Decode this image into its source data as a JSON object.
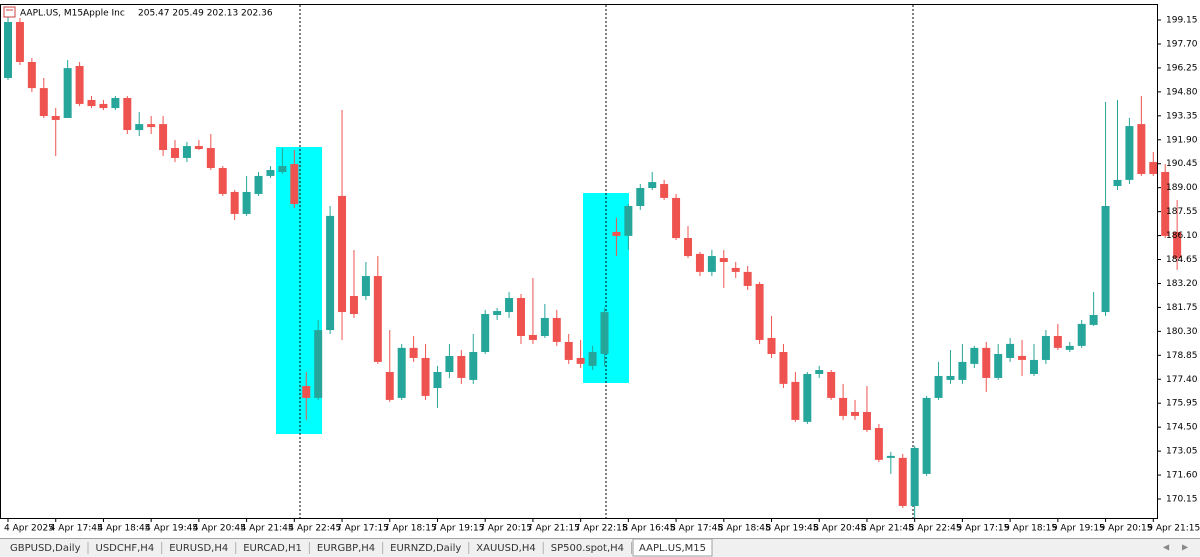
{
  "header": {
    "symbol": "AAPL.US, M15:",
    "name": "Apple Inc",
    "ohlc": "205.47 205.49 202.13 202.36"
  },
  "tabs": [
    "GBPUSD,Daily",
    "USDCHF,H4",
    "EURUSD,H4",
    "EURCAD,H1",
    "EURGBP,H4",
    "EURNZD,Daily",
    "XAUUSD,H4",
    "SP500.spot,H4",
    "AAPL.US,M15"
  ],
  "chart_data": {
    "type": "candlestick",
    "categories": [
      "4 Apr 2025",
      null,
      null,
      null,
      "4 Apr 17:45",
      null,
      null,
      null,
      "4 Apr 18:45",
      null,
      null,
      null,
      "4 Apr 19:45",
      null,
      null,
      null,
      "4 Apr 20:45",
      null,
      null,
      null,
      "4 Apr 21:45",
      null,
      null,
      null,
      "4 Apr 22:45",
      null,
      null,
      null,
      "7 Apr 17:15",
      null,
      null,
      null,
      "7 Apr 18:15",
      null,
      null,
      null,
      "7 Apr 19:15",
      null,
      null,
      null,
      "7 Apr 20:15",
      null,
      null,
      null,
      "7 Apr 21:15",
      null,
      null,
      null,
      "7 Apr 22:15",
      null,
      null,
      null,
      "8 Apr 16:45",
      null,
      null,
      null,
      "8 Apr 17:45",
      null,
      null,
      null,
      "8 Apr 18:45",
      null,
      null,
      null,
      "8 Apr 19:45",
      null,
      null,
      null,
      "8 Apr 20:45",
      null,
      null,
      null,
      "8 Apr 21:45",
      null,
      null,
      null,
      "8 Apr 22:45",
      null,
      null,
      null,
      "9 Apr 17:15",
      null,
      null,
      null,
      "9 Apr 18:15",
      null,
      null,
      null,
      "9 Apr 19:15",
      null,
      null,
      null,
      "9 Apr 20:15",
      null,
      null,
      null,
      "9 Apr 21:15",
      null,
      null
    ],
    "open": [
      195.64,
      199.03,
      196.61,
      195.03,
      193.34,
      193.22,
      196.37,
      194.31,
      194.07,
      193.82,
      194.43,
      192.49,
      192.85,
      192.85,
      191.4,
      190.8,
      191.52,
      191.4,
      190.19,
      188.74,
      187.41,
      188.62,
      189.71,
      189.95,
      190.43,
      176.99,
      176.27,
      180.38,
      188.5,
      182.44,
      182.44,
      183.65,
      177.84,
      176.27,
      179.3,
      178.69,
      176.87,
      177.84,
      178.81,
      177.36,
      179.05,
      181.29,
      181.47,
      182.32,
      180.08,
      180.02,
      181.11,
      179.66,
      178.69,
      178.21,
      178.93,
      186.32,
      186.08,
      187.89,
      188.98,
      189.22,
      188.38,
      185.95,
      184.99,
      183.9,
      184.74,
      184.14,
      183.9,
      183.17,
      179.9,
      179.05,
      177.24,
      174.82,
      177.72,
      177.84,
      176.27,
      175.42,
      175.42,
      174.45,
      172.64,
      172.64,
      169.73,
      171.67,
      176.27,
      177.36,
      177.36,
      178.33,
      179.3,
      177.48,
      178.69,
      178.81,
      177.72,
      178.57,
      180.02,
      179.18,
      179.42,
      180.69,
      181.47,
      189.1,
      189.47,
      192.85,
      190.55,
      189.95,
      186.32
    ],
    "high": [
      199.63,
      199.27,
      196.85,
      195.64,
      193.82,
      196.73,
      196.61,
      194.55,
      194.31,
      194.55,
      194.55,
      193.58,
      193.34,
      193.34,
      191.89,
      191.77,
      191.89,
      192.25,
      190.31,
      188.86,
      189.71,
      189.95,
      190.31,
      191.4,
      191.28,
      177.84,
      180.99,
      187.89,
      193.7,
      185.23,
      184.5,
      184.86,
      180.38,
      179.54,
      180.02,
      179.54,
      178.21,
      179.54,
      179.17,
      180.14,
      181.6,
      181.72,
      182.69,
      182.56,
      183.53,
      181.96,
      181.6,
      180.14,
      179.78,
      179.42,
      181.72,
      187.17,
      188.01,
      189.22,
      189.95,
      189.47,
      188.62,
      186.68,
      185.11,
      185.23,
      185.23,
      184.5,
      184.26,
      183.29,
      181.23,
      179.54,
      177.84,
      177.84,
      178.21,
      177.96,
      177.12,
      176.15,
      176.99,
      174.69,
      173.0,
      172.88,
      173.36,
      176.39,
      178.45,
      179.17,
      179.54,
      179.42,
      179.66,
      179.54,
      179.9,
      179.78,
      179.54,
      180.38,
      180.75,
      179.66,
      180.99,
      182.69,
      194.19,
      194.31,
      193.22,
      194.55,
      191.16,
      190.43,
      188.25
    ],
    "low": [
      195.52,
      196.43,
      194.79,
      193.22,
      190.92,
      193.22,
      193.94,
      193.82,
      193.7,
      193.7,
      192.25,
      192.13,
      192.25,
      190.92,
      190.55,
      190.55,
      191.28,
      190.07,
      188.5,
      187.04,
      187.29,
      188.5,
      189.59,
      189.83,
      187.77,
      174.94,
      176.15,
      180.14,
      179.78,
      181.11,
      182.2,
      178.33,
      176.03,
      176.15,
      178.45,
      176.15,
      175.66,
      177.48,
      177.12,
      177.12,
      178.93,
      180.99,
      181.11,
      179.54,
      179.54,
      179.9,
      179.42,
      178.33,
      178.08,
      177.96,
      178.21,
      184.86,
      185.23,
      187.65,
      188.86,
      188.25,
      185.83,
      184.74,
      183.65,
      183.65,
      182.93,
      183.53,
      182.81,
      179.54,
      178.69,
      176.87,
      174.82,
      174.69,
      177.48,
      176.15,
      174.94,
      174.94,
      174.21,
      172.39,
      171.67,
      169.61,
      169.0,
      171.55,
      176.15,
      177.12,
      177.12,
      178.08,
      176.63,
      177.36,
      178.45,
      177.6,
      177.6,
      178.33,
      179.17,
      179.05,
      179.3,
      180.63,
      181.23,
      188.86,
      189.22,
      189.71,
      189.71,
      185.95,
      184.02
    ],
    "close": [
      199.03,
      196.61,
      195.03,
      193.34,
      193.1,
      196.24,
      194.07,
      193.94,
      193.82,
      194.43,
      192.49,
      192.85,
      192.67,
      191.28,
      190.8,
      191.52,
      191.34,
      190.19,
      188.62,
      187.41,
      188.74,
      189.71,
      190.07,
      190.31,
      188.01,
      176.27,
      180.38,
      187.29,
      181.47,
      181.35,
      183.65,
      178.45,
      176.15,
      179.3,
      178.69,
      176.39,
      177.84,
      178.81,
      177.48,
      179.05,
      181.35,
      181.53,
      182.32,
      180.02,
      179.78,
      181.11,
      179.66,
      178.57,
      178.33,
      179.05,
      181.47,
      186.08,
      187.89,
      188.98,
      189.34,
      188.38,
      185.95,
      184.86,
      183.9,
      184.86,
      184.5,
      183.9,
      183.05,
      179.78,
      178.93,
      177.12,
      174.94,
      177.72,
      177.96,
      176.27,
      175.18,
      175.18,
      174.33,
      172.52,
      172.76,
      169.73,
      173.24,
      176.27,
      177.6,
      177.6,
      178.45,
      179.3,
      177.48,
      178.93,
      179.54,
      178.57,
      178.57,
      180.02,
      179.3,
      179.42,
      180.75,
      181.29,
      187.89,
      189.47,
      192.73,
      189.83,
      189.83,
      186.08,
      184.74
    ],
    "up_color": "#26a69a",
    "down_color": "#ef5350",
    "ylim": [
      169.0,
      200.06
    ],
    "yticks": [
      199.15,
      {
        "value": 197.7,
        "label": "197.70"
      },
      196.25,
      {
        "value": 194.8,
        "label": "194.80"
      },
      193.35,
      {
        "value": 191.9,
        "label": "191.90"
      },
      190.45,
      {
        "value": 189.0,
        "label": "189.00"
      },
      187.55,
      {
        "value": 186.1,
        "label": "186.10"
      },
      184.65,
      {
        "value": 183.2,
        "label": "183.20"
      },
      181.75,
      {
        "value": 180.3,
        "label": "180.30"
      },
      178.85,
      {
        "value": 177.4,
        "label": "177.40"
      },
      175.95,
      {
        "value": 174.5,
        "label": "174.50"
      },
      173.05,
      {
        "value": 171.6,
        "label": "171.60"
      },
      170.15
    ],
    "grid": false
  }
}
